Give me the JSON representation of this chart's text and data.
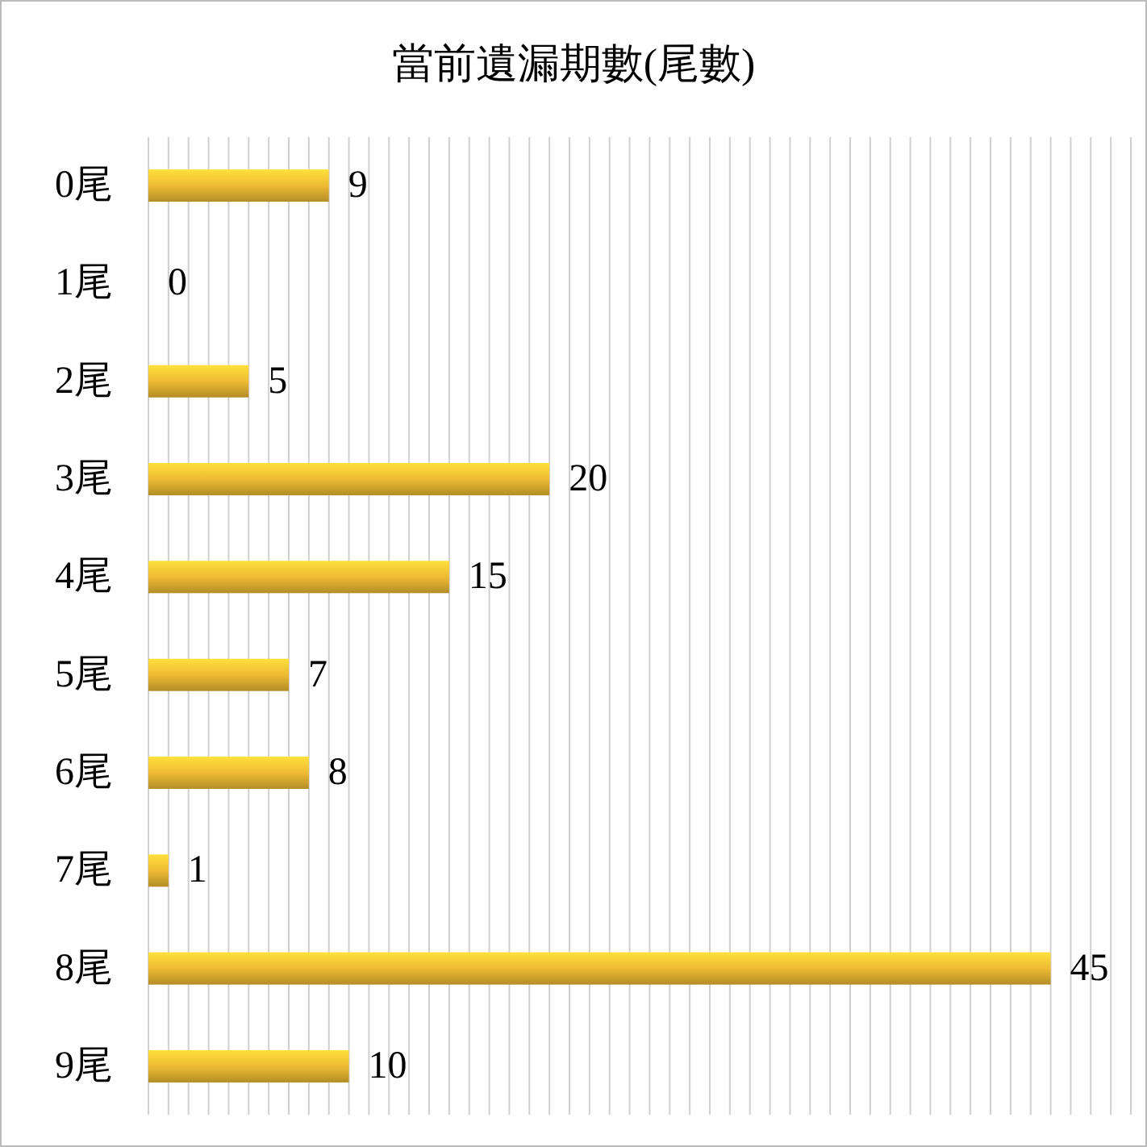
{
  "chart_data": {
    "type": "bar",
    "orientation": "horizontal",
    "title": "當前遺漏期數(尾數)",
    "categories": [
      "0尾",
      "1尾",
      "2尾",
      "3尾",
      "4尾",
      "5尾",
      "6尾",
      "7尾",
      "8尾",
      "9尾"
    ],
    "values": [
      9,
      0,
      5,
      20,
      15,
      7,
      8,
      1,
      45,
      10
    ],
    "color": "#eebb33",
    "xlim": [
      0,
      49
    ],
    "xticks": [
      {
        "value": 0,
        "label": null
      },
      {
        "value": 1,
        "label": null
      },
      {
        "value": 2,
        "label": null
      },
      {
        "value": 3,
        "label": null
      },
      {
        "value": 4,
        "label": null
      },
      {
        "value": 5,
        "label": null
      },
      {
        "value": 6,
        "label": null
      },
      {
        "value": 7,
        "label": null
      },
      {
        "value": 8,
        "label": null
      },
      {
        "value": 9,
        "label": null
      },
      {
        "value": 10,
        "label": null
      },
      {
        "value": 11,
        "label": null
      },
      {
        "value": 12,
        "label": null
      },
      {
        "value": 13,
        "label": null
      },
      {
        "value": 14,
        "label": null
      },
      {
        "value": 15,
        "label": null
      },
      {
        "value": 16,
        "label": null
      },
      {
        "value": 17,
        "label": null
      },
      {
        "value": 18,
        "label": null
      },
      {
        "value": 19,
        "label": null
      },
      {
        "value": 20,
        "label": null
      },
      {
        "value": 21,
        "label": null
      },
      {
        "value": 22,
        "label": null
      },
      {
        "value": 23,
        "label": null
      },
      {
        "value": 24,
        "label": null
      },
      {
        "value": 25,
        "label": null
      },
      {
        "value": 26,
        "label": null
      },
      {
        "value": 27,
        "label": null
      },
      {
        "value": 28,
        "label": null
      },
      {
        "value": 29,
        "label": null
      },
      {
        "value": 30,
        "label": null
      },
      {
        "value": 31,
        "label": null
      },
      {
        "value": 32,
        "label": null
      },
      {
        "value": 33,
        "label": null
      },
      {
        "value": 34,
        "label": null
      },
      {
        "value": 35,
        "label": null
      },
      {
        "value": 36,
        "label": null
      },
      {
        "value": 37,
        "label": null
      },
      {
        "value": 38,
        "label": null
      },
      {
        "value": 39,
        "label": null
      },
      {
        "value": 40,
        "label": null
      },
      {
        "value": 41,
        "label": null
      },
      {
        "value": 42,
        "label": null
      },
      {
        "value": 43,
        "label": null
      },
      {
        "value": 44,
        "label": null
      },
      {
        "value": 45,
        "label": null
      },
      {
        "value": 46,
        "label": null
      },
      {
        "value": 47,
        "label": null
      },
      {
        "value": 48,
        "label": null
      },
      {
        "value": 49,
        "label": null
      }
    ],
    "tick_labels": "y",
    "grid": "x",
    "data_labels": true
  }
}
